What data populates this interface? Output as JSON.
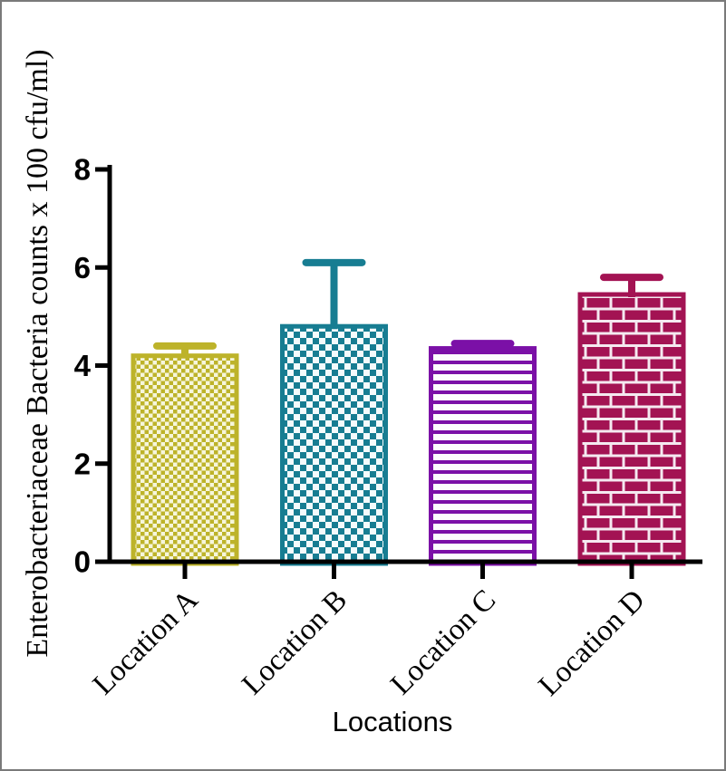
{
  "frame": {
    "border_color": "#7a7a7a",
    "background": "#ffffff"
  },
  "chart_data": {
    "type": "bar",
    "title": "",
    "xlabel": "Locations",
    "ylabel": "Enterobacteriaceae Bacteria counts x 100 cfu/ml)",
    "categories": [
      "Location A",
      "Location B",
      "Location C",
      "Location D"
    ],
    "values": [
      4.2,
      4.8,
      4.35,
      5.45
    ],
    "errors_plus": [
      0.2,
      1.3,
      0.1,
      0.35
    ],
    "ylim": [
      0,
      8
    ],
    "yticks": [
      "0",
      "2",
      "4",
      "6",
      "8"
    ],
    "grid": false,
    "legend": false,
    "axis_color": "#000000",
    "bar_styles": [
      {
        "name": "olive-fine-checker",
        "pattern": "checker",
        "check": 4.5,
        "color": "#bdb32a",
        "bg": "#f6f6dc"
      },
      {
        "name": "teal-large-checker",
        "pattern": "checker",
        "check": 7,
        "color": "#177d92",
        "bg": "#f4fbfc"
      },
      {
        "name": "purple-horiz-lines",
        "pattern": "hlines",
        "line": 4,
        "gap": 7,
        "color": "#7b10a7",
        "bg": "#fdfcfe"
      },
      {
        "name": "maroon-brick",
        "pattern": "brick",
        "color": "#a31353",
        "bg": "#f5e9f0"
      }
    ]
  }
}
